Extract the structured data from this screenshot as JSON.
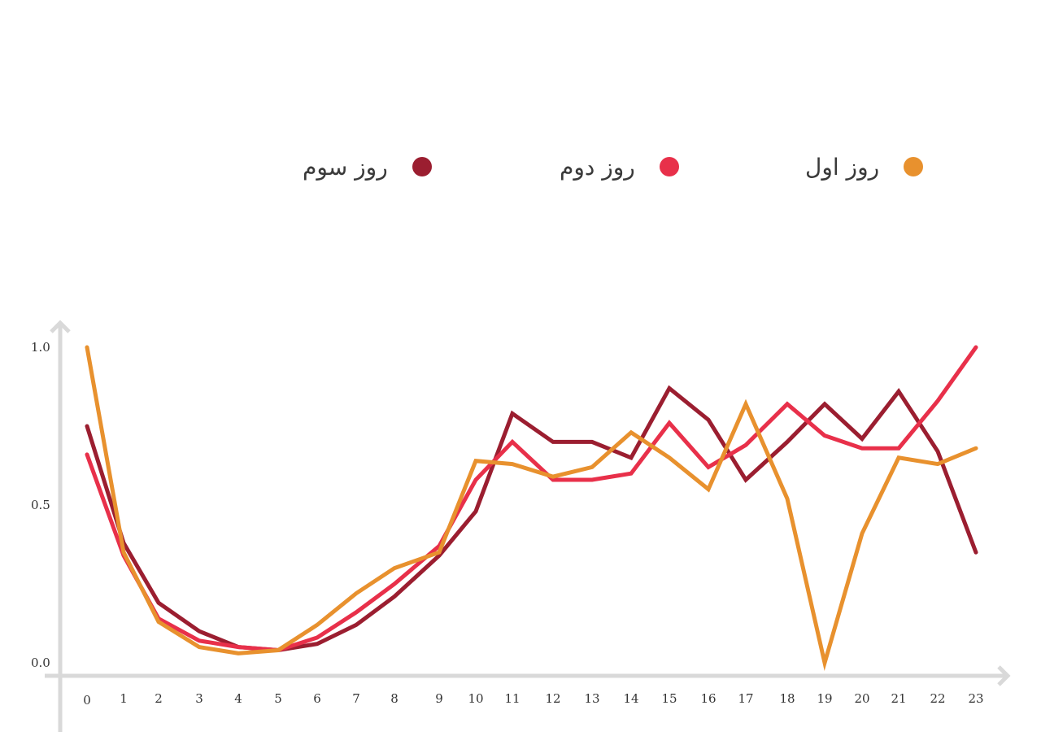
{
  "legend": {
    "items": [
      {
        "label": "روز اول",
        "color": "#E8912E"
      },
      {
        "label": "روز دوم",
        "color": "#E8304A"
      },
      {
        "label": "روز سوم",
        "color": "#9B1E30"
      }
    ]
  },
  "axes": {
    "color": "#D9D9D9",
    "y_ticks": [
      "1.0",
      "0.5",
      "0.0"
    ],
    "x_ticks": [
      "0",
      "1",
      "2",
      "3",
      "4",
      "5",
      "6",
      "7",
      "8",
      "9",
      "10",
      "11",
      "12",
      "13",
      "14",
      "15",
      "16",
      "17",
      "18",
      "19",
      "20",
      "21",
      "22",
      "23"
    ]
  },
  "chart_data": {
    "type": "line",
    "title": "",
    "xlabel": "",
    "ylabel": "",
    "x": [
      0,
      1,
      2,
      3,
      4,
      5,
      6,
      7,
      8,
      9,
      10,
      11,
      12,
      13,
      14,
      15,
      16,
      17,
      18,
      19,
      20,
      21,
      22,
      23
    ],
    "ylim": [
      0,
      1.0
    ],
    "y_ticks": [
      0.0,
      0.5,
      1.0
    ],
    "grid": false,
    "legend_position": "top",
    "series": [
      {
        "name": "روز اول",
        "color": "#E8912E",
        "values": [
          1.0,
          0.35,
          0.13,
          0.05,
          0.03,
          0.04,
          0.12,
          0.22,
          0.3,
          0.35,
          0.64,
          0.63,
          0.59,
          0.62,
          0.73,
          0.65,
          0.55,
          0.82,
          0.52,
          0.0,
          0.41,
          0.65,
          0.63,
          0.68
        ]
      },
      {
        "name": "روز دوم",
        "color": "#E8304A",
        "values": [
          0.66,
          0.34,
          0.14,
          0.07,
          0.05,
          0.04,
          0.08,
          0.16,
          0.25,
          0.37,
          0.58,
          0.7,
          0.58,
          0.58,
          0.6,
          0.76,
          0.62,
          0.69,
          0.82,
          0.72,
          0.68,
          0.68,
          0.83,
          1.0
        ]
      },
      {
        "name": "روز سوم",
        "color": "#9B1E30",
        "values": [
          0.75,
          0.38,
          0.19,
          0.1,
          0.05,
          0.04,
          0.06,
          0.12,
          0.21,
          0.34,
          0.48,
          0.79,
          0.7,
          0.7,
          0.65,
          0.87,
          0.77,
          0.58,
          0.7,
          0.82,
          0.71,
          0.86,
          0.67,
          0.35
        ]
      }
    ]
  }
}
